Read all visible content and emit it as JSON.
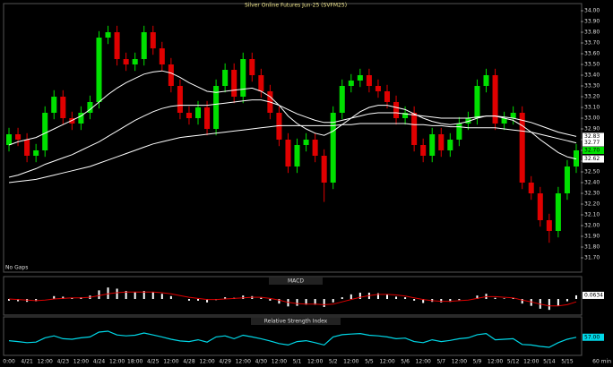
{
  "chart_data": [
    {
      "type": "candlestick",
      "title": "Silver Online Futures Jun-25 (SVFM25)",
      "note": "No Gaps",
      "footer": "60 min",
      "up_color": "#00e000",
      "down_color": "#e00000",
      "categories": [
        "0:00",
        null,
        "4/21",
        null,
        "12:00",
        null,
        "4/23",
        null,
        "12:00",
        null,
        "4/24",
        null,
        "12:00",
        null,
        "18:00",
        null,
        "4/25",
        null,
        "12:00",
        null,
        "4/28",
        null,
        "12:00",
        null,
        "4/29",
        null,
        "12:00",
        null,
        "4/30",
        null,
        "12:00",
        null,
        "5/1",
        null,
        "12:00",
        null,
        "5/2",
        null,
        "12:00",
        null,
        "5/5",
        null,
        "12:00",
        null,
        "5/6",
        null,
        "12:00",
        null,
        "5/7",
        null,
        "12:00",
        null,
        "5/9",
        null,
        "12:00",
        null,
        "5/12",
        null,
        "12:00",
        null,
        "5/14",
        null,
        "5/15",
        null
      ],
      "open": [
        32.75,
        32.85,
        32.8,
        32.65,
        32.7,
        33.05,
        33.2,
        33.0,
        32.95,
        33.05,
        33.15,
        33.75,
        33.8,
        33.55,
        33.5,
        33.55,
        33.8,
        33.65,
        33.5,
        33.3,
        33.05,
        33.0,
        33.1,
        32.9,
        33.3,
        33.45,
        33.2,
        33.55,
        33.4,
        33.25,
        33.05,
        32.8,
        32.55,
        32.75,
        32.8,
        32.65,
        32.4,
        33.05,
        33.3,
        33.35,
        33.4,
        33.3,
        33.25,
        33.15,
        33.0,
        33.05,
        32.75,
        32.65,
        32.85,
        32.7,
        32.8,
        32.95,
        33.0,
        33.3,
        33.4,
        32.95,
        33.0,
        33.05,
        32.4,
        32.3,
        32.05,
        31.95,
        32.3,
        32.55
      ],
      "high": [
        32.91,
        32.91,
        32.86,
        32.76,
        33.11,
        33.26,
        33.26,
        33.06,
        33.11,
        33.21,
        33.81,
        33.86,
        33.86,
        33.61,
        33.61,
        33.86,
        33.86,
        33.71,
        33.56,
        33.36,
        33.11,
        33.16,
        33.16,
        33.36,
        33.51,
        33.51,
        33.61,
        33.61,
        33.46,
        33.31,
        33.11,
        32.86,
        32.81,
        32.86,
        32.86,
        32.71,
        33.11,
        33.36,
        33.41,
        33.46,
        33.46,
        33.36,
        33.31,
        33.21,
        33.11,
        33.11,
        32.81,
        32.91,
        32.91,
        32.86,
        33.01,
        33.06,
        33.36,
        33.46,
        33.46,
        33.06,
        33.11,
        33.11,
        32.46,
        32.36,
        32.11,
        32.36,
        32.61,
        32.76
      ],
      "low": [
        32.69,
        32.74,
        32.59,
        32.59,
        32.64,
        32.99,
        32.94,
        32.89,
        32.89,
        32.99,
        33.09,
        33.69,
        33.49,
        33.44,
        33.44,
        33.49,
        33.59,
        33.44,
        33.24,
        32.99,
        32.94,
        32.94,
        32.84,
        32.84,
        33.24,
        33.14,
        33.14,
        33.34,
        33.19,
        32.99,
        32.74,
        32.49,
        32.49,
        32.69,
        32.59,
        32.22,
        32.34,
        32.99,
        33.24,
        33.29,
        33.24,
        33.19,
        33.09,
        32.94,
        32.94,
        32.69,
        32.59,
        32.59,
        32.64,
        32.64,
        32.74,
        32.89,
        32.94,
        33.24,
        32.89,
        32.89,
        32.94,
        32.34,
        32.24,
        31.99,
        31.84,
        31.89,
        32.24,
        32.49
      ],
      "close": [
        32.85,
        32.8,
        32.65,
        32.7,
        33.05,
        33.2,
        33.0,
        32.95,
        33.05,
        33.15,
        33.75,
        33.8,
        33.55,
        33.5,
        33.55,
        33.8,
        33.65,
        33.5,
        33.3,
        33.05,
        33.0,
        33.1,
        32.9,
        33.3,
        33.45,
        33.2,
        33.55,
        33.4,
        33.25,
        33.05,
        32.8,
        32.55,
        32.75,
        32.8,
        32.65,
        32.4,
        33.05,
        33.3,
        33.35,
        33.4,
        33.3,
        33.25,
        33.15,
        33.0,
        33.05,
        32.75,
        32.65,
        32.85,
        32.7,
        32.8,
        32.95,
        33.0,
        33.3,
        33.4,
        32.95,
        33.0,
        33.05,
        32.4,
        32.3,
        32.05,
        31.95,
        32.3,
        32.55,
        32.7
      ],
      "close_label": "32.70",
      "overlays": [
        {
          "color": "#ffffff",
          "last_label": "32.62",
          "values": [
            32.75,
            32.78,
            32.8,
            32.82,
            32.86,
            32.9,
            32.94,
            32.98,
            33.02,
            33.08,
            33.15,
            33.22,
            33.28,
            33.33,
            33.37,
            33.41,
            33.43,
            33.44,
            33.42,
            33.38,
            33.33,
            33.29,
            33.25,
            33.24,
            33.25,
            33.26,
            33.27,
            33.28,
            33.25,
            33.2,
            33.12,
            33.02,
            32.95,
            32.9,
            32.86,
            32.84,
            32.88,
            32.94,
            33.0,
            33.06,
            33.1,
            33.12,
            33.12,
            33.1,
            33.08,
            33.04,
            33.0,
            32.97,
            32.95,
            32.94,
            32.95,
            32.97,
            33.0,
            33.02,
            33.02,
            33.0,
            32.98,
            32.93,
            32.87,
            32.8,
            32.74,
            32.68,
            32.64,
            32.62
          ]
        },
        {
          "color": "#ffffff",
          "last_label": "32.83",
          "values": [
            32.45,
            32.47,
            32.5,
            32.53,
            32.57,
            32.6,
            32.63,
            32.66,
            32.7,
            32.74,
            32.78,
            32.83,
            32.88,
            32.93,
            32.98,
            33.02,
            33.06,
            33.09,
            33.11,
            33.12,
            33.12,
            33.12,
            33.12,
            33.13,
            33.14,
            33.15,
            33.16,
            33.17,
            33.17,
            33.15,
            33.12,
            33.08,
            33.04,
            33.01,
            32.98,
            32.96,
            32.96,
            32.98,
            33.0,
            33.02,
            33.04,
            33.05,
            33.05,
            33.05,
            33.04,
            33.03,
            33.02,
            33.01,
            33.0,
            33.0,
            33.0,
            33.0,
            33.01,
            33.02,
            33.02,
            33.01,
            33.0,
            32.98,
            32.96,
            32.93,
            32.9,
            32.87,
            32.85,
            32.83
          ]
        },
        {
          "color": "#ffffff",
          "last_label": "32.77",
          "values": [
            32.4,
            32.41,
            32.42,
            32.43,
            32.45,
            32.47,
            32.49,
            32.51,
            32.53,
            32.55,
            32.58,
            32.61,
            32.64,
            32.67,
            32.7,
            32.73,
            32.76,
            32.78,
            32.8,
            32.82,
            32.83,
            32.84,
            32.85,
            32.86,
            32.87,
            32.88,
            32.89,
            32.9,
            32.91,
            32.92,
            32.93,
            32.93,
            32.93,
            32.93,
            32.93,
            32.93,
            32.93,
            32.94,
            32.94,
            32.95,
            32.95,
            32.95,
            32.95,
            32.95,
            32.95,
            32.94,
            32.94,
            32.93,
            32.93,
            32.92,
            32.92,
            32.91,
            32.91,
            32.91,
            32.91,
            32.9,
            32.89,
            32.88,
            32.87,
            32.85,
            32.83,
            32.81,
            32.79,
            32.77
          ]
        }
      ],
      "ylim": [
        31.6,
        34.05
      ],
      "yticks": [
        {
          "value": 31.7,
          "label": "31.70"
        },
        {
          "value": 31.8,
          "label": "31.80"
        },
        {
          "value": 31.9,
          "label": "31.90"
        },
        {
          "value": 32.0,
          "label": "32.00"
        },
        {
          "value": 32.1,
          "label": "32.10"
        },
        {
          "value": 32.2,
          "label": "32.20"
        },
        {
          "value": 32.3,
          "label": "32.30"
        },
        {
          "value": 32.4,
          "label": "32.40"
        },
        {
          "value": 32.5,
          "label": "32.50"
        },
        {
          "value": 32.6,
          "label": "32.60"
        },
        {
          "value": 32.7,
          "label": "32.70"
        },
        {
          "value": 32.8,
          "label": "32.80"
        },
        {
          "value": 32.9,
          "label": "32.90"
        },
        {
          "value": 33.0,
          "label": "33.00"
        },
        {
          "value": 33.1,
          "label": "33.10"
        },
        {
          "value": 33.2,
          "label": "33.20"
        },
        {
          "value": 33.3,
          "label": "33.30"
        },
        {
          "value": 33.4,
          "label": "33.40"
        },
        {
          "value": 33.5,
          "label": "33.50"
        },
        {
          "value": 33.6,
          "label": "33.60"
        },
        {
          "value": 33.7,
          "label": "33.70"
        },
        {
          "value": 33.8,
          "label": "33.80"
        },
        {
          "value": 33.9,
          "label": "33.90"
        },
        {
          "value": 34.0,
          "label": "34.00"
        }
      ]
    },
    {
      "type": "macd",
      "title": "MACD",
      "ylim": [
        -0.25,
        0.25
      ],
      "series": [
        {
          "kind": "bar",
          "color": "#ffffff",
          "last_label": "0.0634",
          "values": [
            -0.03,
            -0.04,
            -0.05,
            -0.04,
            0.0,
            0.05,
            0.04,
            0.02,
            0.03,
            0.06,
            0.15,
            0.2,
            0.18,
            0.14,
            0.12,
            0.14,
            0.12,
            0.09,
            0.05,
            0.0,
            -0.03,
            -0.03,
            -0.06,
            -0.02,
            0.03,
            0.02,
            0.06,
            0.05,
            0.02,
            -0.03,
            -0.08,
            -0.13,
            -0.12,
            -0.1,
            -0.1,
            -0.14,
            -0.06,
            0.03,
            0.08,
            0.11,
            0.11,
            0.1,
            0.08,
            0.04,
            0.03,
            -0.03,
            -0.07,
            -0.05,
            -0.06,
            -0.05,
            -0.02,
            0.0,
            0.06,
            0.09,
            0.02,
            0.01,
            0.02,
            -0.08,
            -0.12,
            -0.17,
            -0.19,
            -0.12,
            -0.04,
            0.0634
          ]
        },
        {
          "kind": "line",
          "color": "#e00000",
          "values": [
            0,
            -0.01,
            -0.02,
            -0.03,
            -0.02,
            0,
            0.01,
            0.02,
            0.02,
            0.03,
            0.06,
            0.09,
            0.11,
            0.12,
            0.12,
            0.12,
            0.12,
            0.11,
            0.09,
            0.06,
            0.03,
            0.01,
            -0.01,
            -0.01,
            0,
            0.01,
            0.02,
            0.03,
            0.03,
            0.01,
            -0.02,
            -0.06,
            -0.08,
            -0.09,
            -0.09,
            -0.1,
            -0.09,
            -0.05,
            -0.01,
            0.03,
            0.06,
            0.08,
            0.08,
            0.07,
            0.05,
            0.02,
            -0.01,
            -0.03,
            -0.04,
            -0.04,
            -0.03,
            -0.02,
            0.01,
            0.04,
            0.04,
            0.03,
            0.02,
            -0.02,
            -0.05,
            -0.09,
            -0.12,
            -0.12,
            -0.1,
            -0.05
          ]
        }
      ]
    },
    {
      "type": "line",
      "title": "Relative Strength Index",
      "ylim": [
        0,
        100
      ],
      "series": [
        {
          "color": "#00d8e8",
          "last_label": "57.00",
          "values": [
            45,
            42,
            38,
            40,
            55,
            62,
            52,
            50,
            55,
            58,
            75,
            78,
            65,
            62,
            64,
            72,
            65,
            58,
            50,
            44,
            42,
            48,
            40,
            58,
            62,
            52,
            64,
            58,
            52,
            44,
            35,
            30,
            42,
            45,
            38,
            30,
            58,
            66,
            68,
            70,
            64,
            62,
            58,
            52,
            54,
            42,
            38,
            48,
            42,
            46,
            52,
            55,
            66,
            70,
            48,
            50,
            52,
            32,
            30,
            25,
            22,
            38,
            50,
            57
          ]
        }
      ]
    }
  ]
}
